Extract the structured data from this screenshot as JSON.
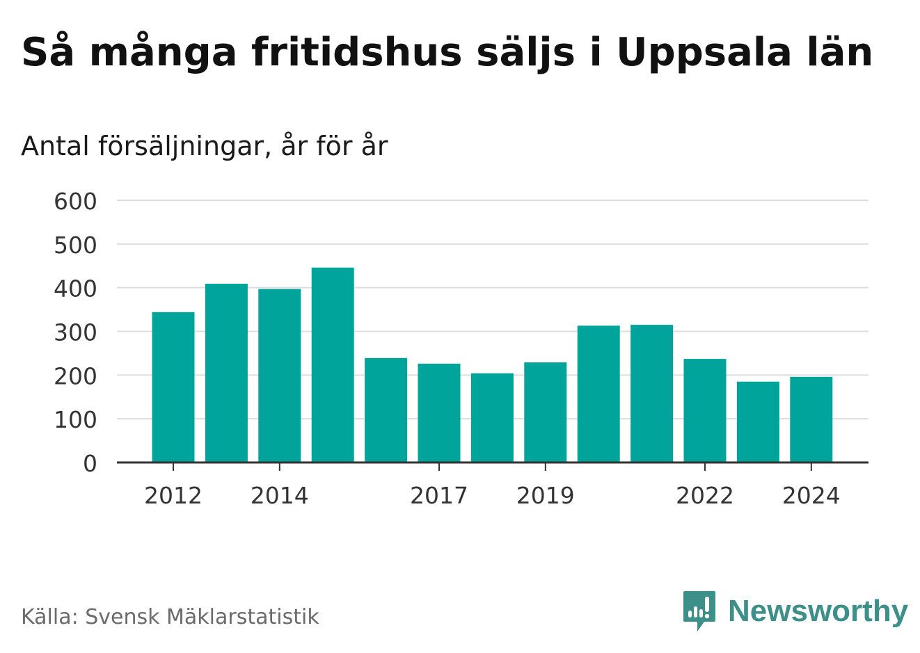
{
  "header": {
    "title": "Så många fritidshus säljs i Uppsala län",
    "subtitle": "Antal försäljningar, år för år"
  },
  "footer": {
    "source": "Källa: Svensk Mäklarstatistik",
    "brand": "Newsworthy",
    "brand_icon": "newsworthy-logo-icon"
  },
  "colors": {
    "bar": "#00a49a",
    "gridline": "#dddddd",
    "axis": "#333333",
    "brand": "#3d8f8a"
  },
  "chart_data": {
    "type": "bar",
    "categories": [
      "2012",
      "2013",
      "2014",
      "2015",
      "2016",
      "2017",
      "2018",
      "2019",
      "2020",
      "2021",
      "2022",
      "2023",
      "2024"
    ],
    "values": [
      344,
      409,
      397,
      446,
      239,
      226,
      204,
      229,
      313,
      315,
      237,
      185,
      196
    ],
    "x_tick_labels": [
      "2012",
      "2014",
      "2017",
      "2019",
      "2022",
      "2024"
    ],
    "y_ticks": [
      0,
      100,
      200,
      300,
      400,
      500,
      600
    ],
    "ylim": [
      0,
      600
    ],
    "grid": true
  }
}
